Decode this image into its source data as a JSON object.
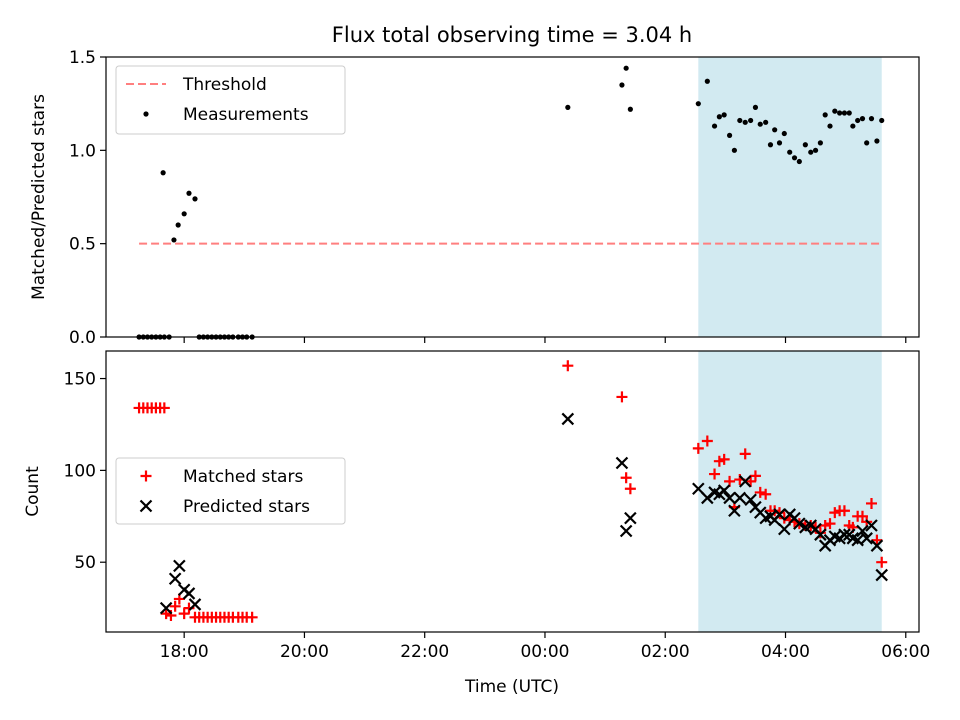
{
  "chart_data": {
    "type": "scatter",
    "title": "Flux total observing time = 3.04 h",
    "xlabel": "Time (UTC)",
    "x_unit": "hours since 00:00 UTC",
    "xlim": [
      -7.3,
      6.22
    ],
    "x_ticks": [
      {
        "value": -6,
        "label": "18:00"
      },
      {
        "value": -4,
        "label": "20:00"
      },
      {
        "value": -2,
        "label": "22:00"
      },
      {
        "value": 0,
        "label": "00:00"
      },
      {
        "value": 2,
        "label": "02:00"
      },
      {
        "value": 4,
        "label": "04:00"
      },
      {
        "value": 6,
        "label": "06:00"
      }
    ],
    "shaded_region": {
      "x": [
        2.55,
        5.6
      ],
      "color": "#add8e6"
    },
    "panels": [
      {
        "id": "ratio",
        "ylabel": "Matched/Predicted stars",
        "ylim": [
          0,
          1.5
        ],
        "y_ticks": [
          0,
          0.5,
          1.0,
          1.5
        ],
        "y_tick_labels": [
          "0.0",
          "0.5",
          "1.0",
          "1.5"
        ],
        "legend": {
          "position": "top-left",
          "entries": [
            "Threshold",
            "Measurements"
          ]
        },
        "threshold": {
          "name": "Threshold",
          "value": 0.5,
          "x": [
            -6.75,
            5.6
          ],
          "color": "#ff7f7f",
          "style": "dashed"
        },
        "series": [
          {
            "name": "Measurements",
            "color": "#000000",
            "marker": "dot",
            "points": [
              [
                -6.75,
                0
              ],
              [
                -6.68,
                0
              ],
              [
                -6.61,
                0
              ],
              [
                -6.54,
                0
              ],
              [
                -6.47,
                0
              ],
              [
                -6.4,
                0
              ],
              [
                -6.33,
                0
              ],
              [
                -6.35,
                0.88
              ],
              [
                -6.25,
                0
              ],
              [
                -6.17,
                0.52
              ],
              [
                -6.1,
                0.6
              ],
              [
                -6.0,
                0.66
              ],
              [
                -5.92,
                0.77
              ],
              [
                -5.82,
                0.74
              ],
              [
                -5.75,
                0
              ],
              [
                -5.68,
                0
              ],
              [
                -5.61,
                0
              ],
              [
                -5.54,
                0
              ],
              [
                -5.47,
                0
              ],
              [
                -5.4,
                0
              ],
              [
                -5.33,
                0
              ],
              [
                -5.26,
                0
              ],
              [
                -5.19,
                0
              ],
              [
                -5.1,
                0
              ],
              [
                -5.03,
                0
              ],
              [
                -4.96,
                0
              ],
              [
                -4.87,
                0
              ],
              [
                0.38,
                1.23
              ],
              [
                1.28,
                1.35
              ],
              [
                1.35,
                1.44
              ],
              [
                1.42,
                1.22
              ],
              [
                2.55,
                1.25
              ],
              [
                2.7,
                1.37
              ],
              [
                2.82,
                1.13
              ],
              [
                2.9,
                1.18
              ],
              [
                2.98,
                1.19
              ],
              [
                3.07,
                1.08
              ],
              [
                3.15,
                1.0
              ],
              [
                3.24,
                1.16
              ],
              [
                3.33,
                1.15
              ],
              [
                3.42,
                1.16
              ],
              [
                3.5,
                1.23
              ],
              [
                3.58,
                1.14
              ],
              [
                3.67,
                1.15
              ],
              [
                3.75,
                1.03
              ],
              [
                3.82,
                1.11
              ],
              [
                3.9,
                1.04
              ],
              [
                3.98,
                1.09
              ],
              [
                4.07,
                0.99
              ],
              [
                4.15,
                0.96
              ],
              [
                4.23,
                0.94
              ],
              [
                4.33,
                1.03
              ],
              [
                4.42,
                0.99
              ],
              [
                4.5,
                1.0
              ],
              [
                4.58,
                1.04
              ],
              [
                4.66,
                1.19
              ],
              [
                4.74,
                1.13
              ],
              [
                4.82,
                1.21
              ],
              [
                4.9,
                1.2
              ],
              [
                4.98,
                1.2
              ],
              [
                5.06,
                1.2
              ],
              [
                5.12,
                1.13
              ],
              [
                5.2,
                1.16
              ],
              [
                5.28,
                1.17
              ],
              [
                5.35,
                1.04
              ],
              [
                5.43,
                1.17
              ],
              [
                5.52,
                1.05
              ],
              [
                5.6,
                1.16
              ]
            ]
          }
        ]
      },
      {
        "id": "counts",
        "ylabel": "Count",
        "ylim": [
          12,
          165
        ],
        "y_ticks": [
          50,
          100,
          150
        ],
        "y_tick_labels": [
          "50",
          "100",
          "150"
        ],
        "legend": {
          "position": "center-left",
          "entries": [
            "Matched stars",
            "Predicted stars"
          ]
        },
        "series": [
          {
            "name": "Matched stars",
            "color": "#ff0000",
            "marker": "plus",
            "points": [
              [
                -6.75,
                134
              ],
              [
                -6.68,
                134
              ],
              [
                -6.61,
                134
              ],
              [
                -6.54,
                134
              ],
              [
                -6.47,
                134
              ],
              [
                -6.4,
                134
              ],
              [
                -6.33,
                134
              ],
              [
                -6.3,
                22
              ],
              [
                -6.22,
                21
              ],
              [
                -6.15,
                26
              ],
              [
                -6.08,
                30
              ],
              [
                -6.0,
                22
              ],
              [
                -5.92,
                25
              ],
              [
                -5.82,
                20
              ],
              [
                -5.75,
                20
              ],
              [
                -5.68,
                20
              ],
              [
                -5.61,
                20
              ],
              [
                -5.54,
                20
              ],
              [
                -5.47,
                20
              ],
              [
                -5.4,
                20
              ],
              [
                -5.33,
                20
              ],
              [
                -5.26,
                20
              ],
              [
                -5.19,
                20
              ],
              [
                -5.1,
                20
              ],
              [
                -5.03,
                20
              ],
              [
                -4.96,
                20
              ],
              [
                -4.87,
                20
              ],
              [
                0.38,
                157
              ],
              [
                1.28,
                140
              ],
              [
                1.35,
                96
              ],
              [
                1.42,
                90
              ],
              [
                2.55,
                112
              ],
              [
                2.7,
                116
              ],
              [
                2.82,
                98
              ],
              [
                2.9,
                105
              ],
              [
                2.98,
                106
              ],
              [
                3.07,
                94
              ],
              [
                3.15,
                80
              ],
              [
                3.24,
                95
              ],
              [
                3.33,
                109
              ],
              [
                3.42,
                94
              ],
              [
                3.5,
                97
              ],
              [
                3.58,
                88
              ],
              [
                3.67,
                87
              ],
              [
                3.75,
                78
              ],
              [
                3.82,
                78
              ],
              [
                3.9,
                77
              ],
              [
                3.98,
                74
              ],
              [
                4.07,
                73
              ],
              [
                4.15,
                72
              ],
              [
                4.23,
                71
              ],
              [
                4.33,
                70
              ],
              [
                4.42,
                70
              ],
              [
                4.5,
                69
              ],
              [
                4.58,
                66
              ],
              [
                4.66,
                70
              ],
              [
                4.74,
                71
              ],
              [
                4.82,
                77
              ],
              [
                4.9,
                78
              ],
              [
                4.98,
                78
              ],
              [
                5.06,
                70
              ],
              [
                5.12,
                69
              ],
              [
                5.2,
                75
              ],
              [
                5.28,
                75
              ],
              [
                5.35,
                72
              ],
              [
                5.43,
                82
              ],
              [
                5.52,
                62
              ],
              [
                5.6,
                50
              ]
            ]
          },
          {
            "name": "Predicted stars",
            "color": "#000000",
            "marker": "x",
            "points": [
              [
                -6.3,
                25
              ],
              [
                -6.15,
                41
              ],
              [
                -6.08,
                48
              ],
              [
                -6.0,
                35
              ],
              [
                -5.92,
                33
              ],
              [
                -5.82,
                27
              ],
              [
                0.38,
                128
              ],
              [
                1.28,
                104
              ],
              [
                1.35,
                67
              ],
              [
                1.42,
                74
              ],
              [
                2.55,
                90
              ],
              [
                2.7,
                85
              ],
              [
                2.82,
                88
              ],
              [
                2.9,
                87
              ],
              [
                2.98,
                89
              ],
              [
                3.07,
                85
              ],
              [
                3.15,
                78
              ],
              [
                3.24,
                85
              ],
              [
                3.33,
                94
              ],
              [
                3.42,
                84
              ],
              [
                3.5,
                80
              ],
              [
                3.58,
                77
              ],
              [
                3.67,
                74
              ],
              [
                3.75,
                75
              ],
              [
                3.82,
                73
              ],
              [
                3.9,
                76
              ],
              [
                3.98,
                68
              ],
              [
                4.07,
                76
              ],
              [
                4.15,
                74
              ],
              [
                4.23,
                71
              ],
              [
                4.33,
                69
              ],
              [
                4.42,
                70
              ],
              [
                4.5,
                68
              ],
              [
                4.58,
                65
              ],
              [
                4.66,
                59
              ],
              [
                4.74,
                62
              ],
              [
                4.82,
                64
              ],
              [
                4.9,
                63
              ],
              [
                4.98,
                65
              ],
              [
                5.06,
                65
              ],
              [
                5.12,
                63
              ],
              [
                5.2,
                62
              ],
              [
                5.28,
                67
              ],
              [
                5.35,
                63
              ],
              [
                5.43,
                70
              ],
              [
                5.52,
                59
              ],
              [
                5.6,
                43
              ]
            ]
          }
        ]
      }
    ]
  }
}
